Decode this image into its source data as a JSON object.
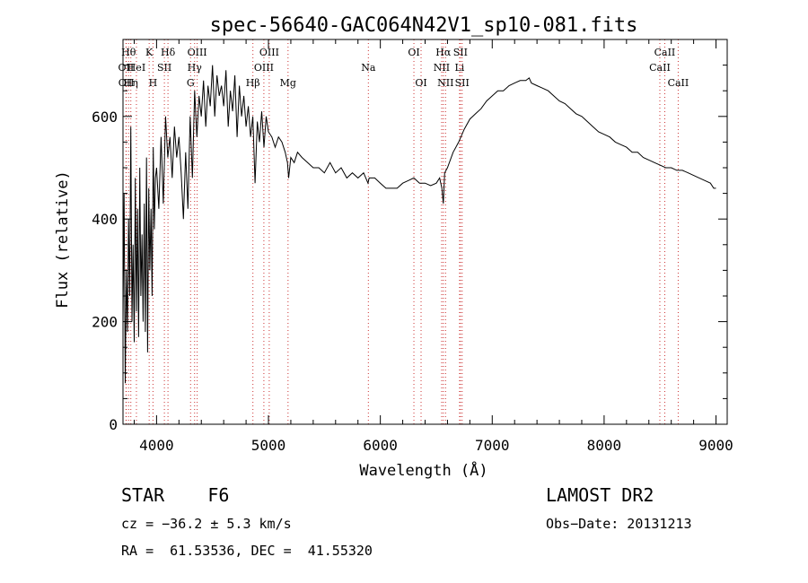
{
  "chart_data": {
    "type": "line",
    "title": "spec-56640-GAC064N42V1_sp10-081.fits",
    "xlabel": "Wavelength (Å)",
    "ylabel": "Flux (relative)",
    "xlim": [
      3700,
      9100
    ],
    "ylim": [
      0,
      750
    ],
    "xticks": [
      4000,
      5000,
      6000,
      7000,
      8000,
      9000
    ],
    "yticks": [
      0,
      200,
      400,
      600
    ],
    "grid": false,
    "legend": "none",
    "colors": {
      "line": "#000000",
      "marker": "#cc3333",
      "frame": "#000000"
    },
    "series": [
      {
        "x": [
          3700,
          3710,
          3720,
          3730,
          3740,
          3750,
          3760,
          3770,
          3780,
          3790,
          3800,
          3810,
          3820,
          3830,
          3840,
          3850,
          3860,
          3870,
          3880,
          3890,
          3900,
          3910,
          3920,
          3930,
          3940,
          3950,
          3960,
          3970,
          3980,
          3990,
          4000,
          4020,
          4040,
          4060,
          4080,
          4100,
          4120,
          4140,
          4160,
          4180,
          4200,
          4220,
          4240,
          4260,
          4280,
          4300,
          4320,
          4340,
          4360,
          4380,
          4400,
          4420,
          4440,
          4460,
          4480,
          4500,
          4520,
          4540,
          4560,
          4580,
          4600,
          4620,
          4640,
          4660,
          4680,
          4700,
          4720,
          4740,
          4760,
          4780,
          4800,
          4820,
          4840,
          4860,
          4880,
          4900,
          4920,
          4940,
          4960,
          4980,
          5000,
          5030,
          5060,
          5090,
          5120,
          5150,
          5170,
          5180,
          5200,
          5230,
          5260,
          5300,
          5350,
          5400,
          5450,
          5500,
          5550,
          5600,
          5650,
          5700,
          5750,
          5800,
          5850,
          5890,
          5900,
          5950,
          6000,
          6050,
          6100,
          6150,
          6200,
          6250,
          6300,
          6350,
          6400,
          6450,
          6500,
          6530,
          6550,
          6563,
          6575,
          6600,
          6650,
          6700,
          6750,
          6800,
          6850,
          6900,
          6950,
          7000,
          7050,
          7100,
          7150,
          7200,
          7250,
          7300,
          7330,
          7350,
          7400,
          7450,
          7500,
          7550,
          7600,
          7650,
          7700,
          7750,
          7800,
          7850,
          7900,
          7950,
          8000,
          8050,
          8100,
          8150,
          8200,
          8250,
          8300,
          8350,
          8400,
          8450,
          8500,
          8550,
          8600,
          8650,
          8700,
          8750,
          8800,
          8850,
          8900,
          8950,
          8980,
          9000
        ],
        "y": [
          200,
          450,
          80,
          300,
          180,
          400,
          250,
          580,
          200,
          350,
          160,
          480,
          220,
          420,
          170,
          500,
          250,
          370,
          200,
          430,
          180,
          520,
          140,
          460,
          300,
          420,
          250,
          540,
          380,
          480,
          500,
          420,
          560,
          430,
          600,
          520,
          560,
          480,
          580,
          520,
          560,
          490,
          400,
          530,
          420,
          600,
          480,
          650,
          560,
          640,
          600,
          670,
          580,
          660,
          620,
          700,
          600,
          680,
          640,
          660,
          620,
          690,
          580,
          650,
          610,
          680,
          560,
          660,
          600,
          640,
          580,
          620,
          560,
          600,
          470,
          590,
          550,
          610,
          540,
          600,
          570,
          560,
          540,
          560,
          550,
          530,
          510,
          480,
          520,
          510,
          530,
          520,
          510,
          500,
          500,
          490,
          510,
          490,
          500,
          480,
          490,
          480,
          490,
          470,
          480,
          480,
          470,
          460,
          460,
          460,
          470,
          475,
          480,
          470,
          470,
          465,
          470,
          480,
          460,
          430,
          490,
          500,
          530,
          550,
          575,
          595,
          605,
          615,
          630,
          640,
          650,
          650,
          660,
          665,
          670,
          670,
          675,
          665,
          660,
          655,
          650,
          640,
          630,
          625,
          615,
          605,
          600,
          590,
          580,
          570,
          565,
          560,
          550,
          545,
          540,
          530,
          530,
          520,
          515,
          510,
          505,
          500,
          500,
          495,
          495,
          490,
          485,
          480,
          475,
          470,
          460,
          460
        ]
      }
    ],
    "line_markers": [
      {
        "x": 3727,
        "label": "OII",
        "row": 2
      },
      {
        "x": 3729,
        "label": "OII",
        "row": 3
      },
      {
        "x": 3750,
        "label": "Hθ",
        "row": 1
      },
      {
        "x": 3770,
        "label": "Hη",
        "row": 3
      },
      {
        "x": 3820,
        "label": "HeI",
        "row": 2
      },
      {
        "x": 3934,
        "label": "K",
        "row": 1
      },
      {
        "x": 3968,
        "label": "H",
        "row": 3
      },
      {
        "x": 4070,
        "label": "SII",
        "row": 2
      },
      {
        "x": 4102,
        "label": "Hδ",
        "row": 1
      },
      {
        "x": 4304,
        "label": "G",
        "row": 3
      },
      {
        "x": 4340,
        "label": "Hγ",
        "row": 2
      },
      {
        "x": 4363,
        "label": "OIII",
        "row": 1
      },
      {
        "x": 4861,
        "label": "Hβ",
        "row": 3
      },
      {
        "x": 4959,
        "label": "OIII",
        "row": 2
      },
      {
        "x": 5007,
        "label": "OIII",
        "row": 1
      },
      {
        "x": 5175,
        "label": "Mg",
        "row": 3
      },
      {
        "x": 5893,
        "label": "Na",
        "row": 2
      },
      {
        "x": 6300,
        "label": "OI",
        "row": 1
      },
      {
        "x": 6364,
        "label": "OI",
        "row": 3
      },
      {
        "x": 6548,
        "label": "NII",
        "row": 2
      },
      {
        "x": 6563,
        "label": "Hα",
        "row": 1
      },
      {
        "x": 6583,
        "label": "NII",
        "row": 3
      },
      {
        "x": 6708,
        "label": "Li",
        "row": 2
      },
      {
        "x": 6716,
        "label": "SII",
        "row": 1
      },
      {
        "x": 6731,
        "label": "SII",
        "row": 3
      },
      {
        "x": 8498,
        "label": "CaII",
        "row": 2
      },
      {
        "x": 8542,
        "label": "CaII",
        "row": 1
      },
      {
        "x": 8662,
        "label": "CaII",
        "row": 3
      }
    ]
  },
  "info": {
    "class": "STAR",
    "subclass": "F6",
    "survey": "LAMOST DR2",
    "redshift": "cz = −36.2 ± 5.3 km/s",
    "obs_date": "Obs−Date: 20131213",
    "coords": "RA =  61.53536, DEC =  41.55320"
  }
}
